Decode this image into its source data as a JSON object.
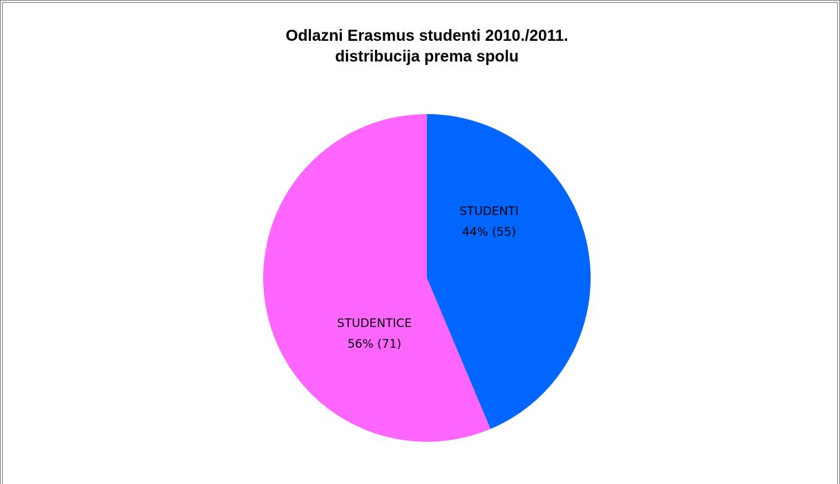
{
  "chart_data": {
    "type": "pie",
    "title": "Odlazni Erasmus studenti 2010./2011.",
    "subtitle": "distribucija prema spolu",
    "slices": [
      {
        "label": "STUDENTI",
        "value": 55,
        "percent_label": "44% (55)",
        "color": "#0066ff"
      },
      {
        "label": "STUDENTICE",
        "value": 71,
        "percent_label": "56% (71)",
        "color": "#ff66ff"
      }
    ]
  }
}
